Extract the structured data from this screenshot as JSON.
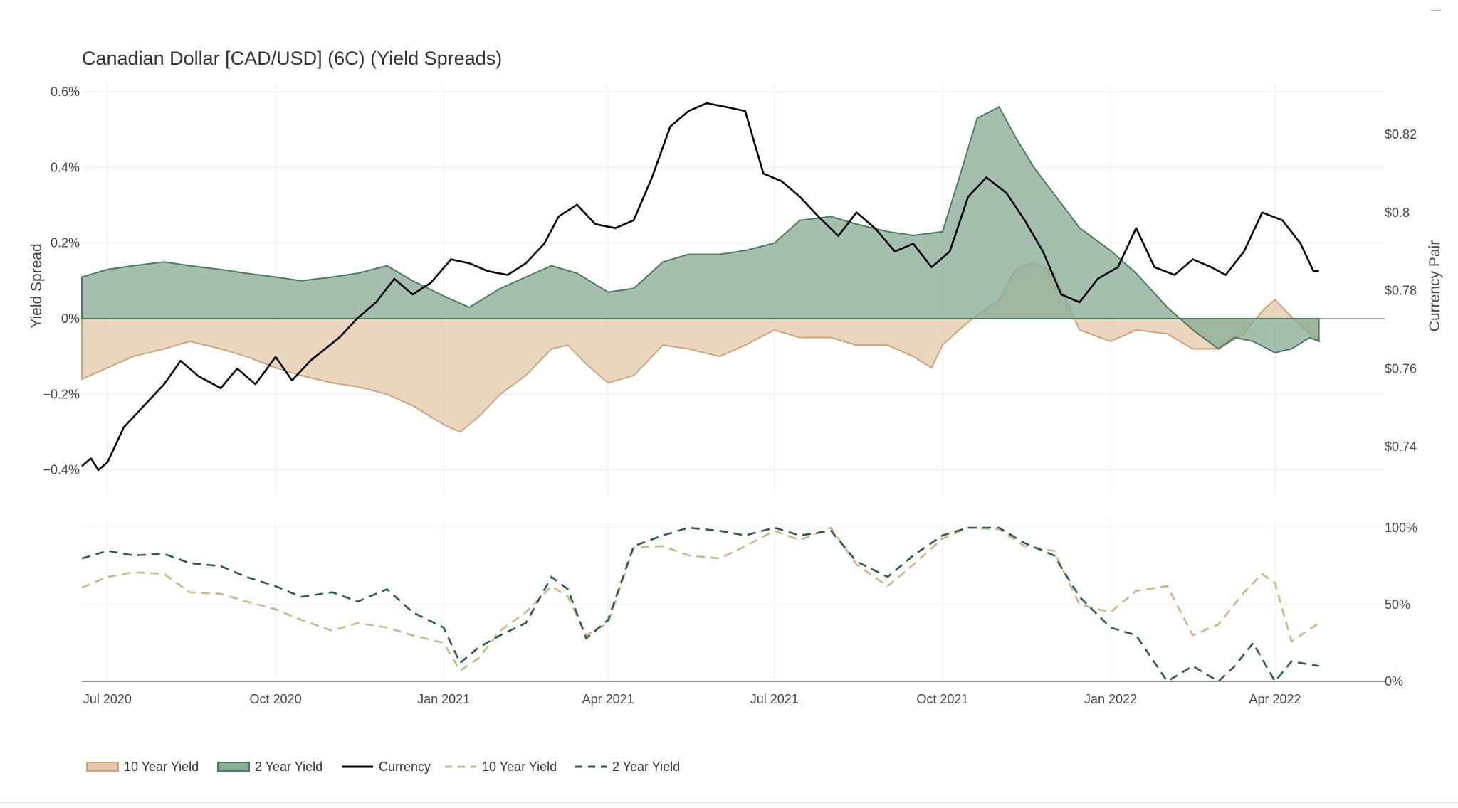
{
  "chart_data": {
    "type": "area",
    "title": "Canadian Dollar [CAD/USD] (6C) (Yield Spreads)",
    "colors": {
      "ten_year_fill": "#e3c7a8",
      "ten_year_line": "#c9a67f",
      "two_year_fill": "#87aa93",
      "two_year_line": "#4e7a60",
      "currency": "#000000",
      "ten_year_dash": "#c8b78c",
      "two_year_dash": "#2f5a4a",
      "grid": "#ebebeb",
      "zero_line": "#777777"
    },
    "x_ticks": [
      "Jul 2020",
      "Oct 2020",
      "Jan 2021",
      "Apr 2021",
      "Jul 2021",
      "Oct 2021",
      "Jan 2022",
      "Apr 2022"
    ],
    "x_tick_dates": [
      "2020-07-01",
      "2020-10-01",
      "2021-01-01",
      "2021-04-01",
      "2021-07-01",
      "2021-10-01",
      "2022-01-01",
      "2022-04-01"
    ],
    "x_range": [
      "2020-06-17",
      "2022-05-31"
    ],
    "upper": {
      "ylabel_left": "Yield Spread",
      "ylabel_right": "Currency Pair",
      "y_left_range": [
        -0.45,
        0.62
      ],
      "y_left_ticks": [
        0.6,
        0.4,
        0.2,
        0,
        -0.2,
        -0.4
      ],
      "y_left_tick_labels": [
        "0.6%",
        "0.4%",
        "0.2%",
        "0%",
        "−0.2%",
        "−0.4%"
      ],
      "y_right_range": [
        0.7292,
        0.8316
      ],
      "y_right_ticks": [
        0.82,
        0.8,
        0.78,
        0.76,
        0.74
      ],
      "y_right_tick_labels": [
        "$0.82",
        "$0.8",
        "$0.78",
        "$0.76",
        "$0.74"
      ],
      "series": [
        {
          "name": "10 Year Yield",
          "kind": "area",
          "axis": "left",
          "x": [
            "2020-06-17",
            "2020-07-01",
            "2020-07-15",
            "2020-08-01",
            "2020-08-15",
            "2020-09-01",
            "2020-09-15",
            "2020-10-01",
            "2020-10-15",
            "2020-11-01",
            "2020-11-15",
            "2020-12-01",
            "2020-12-15",
            "2021-01-01",
            "2021-01-10",
            "2021-01-20",
            "2021-02-01",
            "2021-02-15",
            "2021-03-01",
            "2021-03-10",
            "2021-03-20",
            "2021-04-01",
            "2021-04-15",
            "2021-05-01",
            "2021-05-15",
            "2021-06-01",
            "2021-06-15",
            "2021-07-01",
            "2021-07-15",
            "2021-08-01",
            "2021-08-15",
            "2021-09-01",
            "2021-09-15",
            "2021-09-25",
            "2021-10-01",
            "2021-10-10",
            "2021-10-20",
            "2021-11-01",
            "2021-11-10",
            "2021-11-20",
            "2021-12-01",
            "2021-12-15",
            "2022-01-01",
            "2022-01-15",
            "2022-02-01",
            "2022-02-15",
            "2022-03-01",
            "2022-03-15",
            "2022-03-25",
            "2022-04-01",
            "2022-04-15",
            "2022-04-25"
          ],
          "values": [
            -0.16,
            -0.13,
            -0.1,
            -0.08,
            -0.06,
            -0.08,
            -0.1,
            -0.13,
            -0.15,
            -0.17,
            -0.18,
            -0.2,
            -0.23,
            -0.28,
            -0.3,
            -0.26,
            -0.2,
            -0.15,
            -0.08,
            -0.07,
            -0.12,
            -0.17,
            -0.15,
            -0.07,
            -0.08,
            -0.1,
            -0.07,
            -0.03,
            -0.05,
            -0.05,
            -0.07,
            -0.07,
            -0.1,
            -0.13,
            -0.07,
            -0.03,
            0.01,
            0.05,
            0.13,
            0.15,
            0.12,
            -0.03,
            -0.06,
            -0.03,
            -0.04,
            -0.08,
            -0.08,
            -0.04,
            0.02,
            0.05,
            -0.02,
            -0.06
          ]
        },
        {
          "name": "2 Year Yield",
          "kind": "area",
          "axis": "left",
          "x": [
            "2020-06-17",
            "2020-07-01",
            "2020-07-15",
            "2020-08-01",
            "2020-08-15",
            "2020-09-01",
            "2020-09-15",
            "2020-10-01",
            "2020-10-15",
            "2020-11-01",
            "2020-11-15",
            "2020-12-01",
            "2020-12-15",
            "2021-01-01",
            "2021-01-15",
            "2021-02-01",
            "2021-02-15",
            "2021-03-01",
            "2021-03-15",
            "2021-04-01",
            "2021-04-15",
            "2021-05-01",
            "2021-05-15",
            "2021-06-01",
            "2021-06-15",
            "2021-07-01",
            "2021-07-15",
            "2021-08-01",
            "2021-08-15",
            "2021-09-01",
            "2021-09-15",
            "2021-10-01",
            "2021-10-10",
            "2021-10-20",
            "2021-11-01",
            "2021-11-10",
            "2021-11-20",
            "2021-12-01",
            "2021-12-15",
            "2022-01-01",
            "2022-01-15",
            "2022-02-01",
            "2022-02-15",
            "2022-03-01",
            "2022-03-10",
            "2022-03-20",
            "2022-04-01",
            "2022-04-10",
            "2022-04-20",
            "2022-04-25"
          ],
          "values": [
            0.11,
            0.13,
            0.14,
            0.15,
            0.14,
            0.13,
            0.12,
            0.11,
            0.1,
            0.11,
            0.12,
            0.14,
            0.1,
            0.06,
            0.03,
            0.08,
            0.11,
            0.14,
            0.12,
            0.07,
            0.08,
            0.15,
            0.17,
            0.17,
            0.18,
            0.2,
            0.26,
            0.27,
            0.25,
            0.23,
            0.22,
            0.23,
            0.37,
            0.53,
            0.56,
            0.48,
            0.4,
            0.33,
            0.24,
            0.18,
            0.12,
            0.03,
            -0.03,
            -0.08,
            -0.05,
            -0.06,
            -0.09,
            -0.08,
            -0.05,
            -0.06
          ]
        },
        {
          "name": "Currency",
          "kind": "line",
          "axis": "right",
          "x": [
            "2020-06-17",
            "2020-06-22",
            "2020-06-26",
            "2020-07-01",
            "2020-07-10",
            "2020-07-20",
            "2020-08-01",
            "2020-08-10",
            "2020-08-20",
            "2020-09-01",
            "2020-09-10",
            "2020-09-20",
            "2020-10-01",
            "2020-10-10",
            "2020-10-20",
            "2020-10-28",
            "2020-11-05",
            "2020-11-15",
            "2020-11-25",
            "2020-12-05",
            "2020-12-15",
            "2020-12-25",
            "2021-01-05",
            "2021-01-15",
            "2021-01-25",
            "2021-02-05",
            "2021-02-15",
            "2021-02-25",
            "2021-03-05",
            "2021-03-15",
            "2021-03-25",
            "2021-04-05",
            "2021-04-15",
            "2021-04-25",
            "2021-05-05",
            "2021-05-15",
            "2021-05-25",
            "2021-06-05",
            "2021-06-15",
            "2021-06-25",
            "2021-07-05",
            "2021-07-15",
            "2021-07-25",
            "2021-08-05",
            "2021-08-15",
            "2021-08-25",
            "2021-09-05",
            "2021-09-15",
            "2021-09-25",
            "2021-10-05",
            "2021-10-15",
            "2021-10-25",
            "2021-11-05",
            "2021-11-15",
            "2021-11-25",
            "2021-12-05",
            "2021-12-15",
            "2021-12-25",
            "2022-01-05",
            "2022-01-15",
            "2022-01-25",
            "2022-02-05",
            "2022-02-15",
            "2022-02-25",
            "2022-03-05",
            "2022-03-15",
            "2022-03-25",
            "2022-04-05",
            "2022-04-15",
            "2022-04-22",
            "2022-04-25"
          ],
          "values": [
            0.735,
            0.737,
            0.734,
            0.736,
            0.745,
            0.75,
            0.756,
            0.762,
            0.758,
            0.755,
            0.76,
            0.756,
            0.763,
            0.757,
            0.762,
            0.765,
            0.768,
            0.773,
            0.777,
            0.783,
            0.779,
            0.782,
            0.788,
            0.787,
            0.785,
            0.784,
            0.787,
            0.792,
            0.799,
            0.802,
            0.797,
            0.796,
            0.798,
            0.809,
            0.822,
            0.826,
            0.828,
            0.827,
            0.826,
            0.81,
            0.808,
            0.804,
            0.799,
            0.794,
            0.8,
            0.796,
            0.79,
            0.792,
            0.786,
            0.79,
            0.804,
            0.809,
            0.805,
            0.798,
            0.79,
            0.779,
            0.777,
            0.783,
            0.786,
            0.796,
            0.786,
            0.784,
            0.788,
            0.786,
            0.784,
            0.79,
            0.8,
            0.798,
            0.792,
            0.785,
            0.785
          ]
        }
      ]
    },
    "lower": {
      "y_range": [
        0,
        100
      ],
      "y_ticks": [
        100,
        50,
        0
      ],
      "y_tick_labels": [
        "100%",
        "50%",
        "0%"
      ],
      "series": [
        {
          "name": "10 Year Yield",
          "kind": "dashed-line",
          "x": [
            "2020-06-17",
            "2020-07-01",
            "2020-07-15",
            "2020-08-01",
            "2020-08-15",
            "2020-09-01",
            "2020-09-15",
            "2020-10-01",
            "2020-10-15",
            "2020-11-01",
            "2020-11-15",
            "2020-12-01",
            "2020-12-15",
            "2021-01-01",
            "2021-01-10",
            "2021-01-20",
            "2021-02-01",
            "2021-02-15",
            "2021-03-01",
            "2021-03-10",
            "2021-03-20",
            "2021-04-01",
            "2021-04-15",
            "2021-05-01",
            "2021-05-15",
            "2021-06-01",
            "2021-06-15",
            "2021-07-01",
            "2021-07-15",
            "2021-08-01",
            "2021-08-15",
            "2021-09-01",
            "2021-09-15",
            "2021-10-01",
            "2021-10-15",
            "2021-11-01",
            "2021-11-15",
            "2021-12-01",
            "2021-12-15",
            "2022-01-01",
            "2022-01-15",
            "2022-02-01",
            "2022-02-15",
            "2022-03-01",
            "2022-03-15",
            "2022-03-25",
            "2022-04-01",
            "2022-04-10",
            "2022-04-25"
          ],
          "values": [
            61,
            68,
            71,
            70,
            58,
            57,
            52,
            47,
            40,
            33,
            38,
            35,
            30,
            25,
            7,
            15,
            33,
            45,
            62,
            55,
            30,
            38,
            87,
            88,
            82,
            80,
            88,
            98,
            92,
            100,
            76,
            62,
            76,
            93,
            100,
            99,
            88,
            85,
            50,
            45,
            59,
            62,
            30,
            37,
            58,
            70,
            64,
            26,
            38
          ]
        },
        {
          "name": "2 Year Yield",
          "kind": "dashed-line",
          "x": [
            "2020-06-17",
            "2020-07-01",
            "2020-07-15",
            "2020-08-01",
            "2020-08-15",
            "2020-09-01",
            "2020-09-15",
            "2020-10-01",
            "2020-10-15",
            "2020-11-01",
            "2020-11-15",
            "2020-12-01",
            "2020-12-15",
            "2021-01-01",
            "2021-01-10",
            "2021-01-20",
            "2021-02-01",
            "2021-02-15",
            "2021-03-01",
            "2021-03-10",
            "2021-03-20",
            "2021-04-01",
            "2021-04-15",
            "2021-05-01",
            "2021-05-15",
            "2021-06-01",
            "2021-06-15",
            "2021-07-01",
            "2021-07-15",
            "2021-08-01",
            "2021-08-15",
            "2021-09-01",
            "2021-09-15",
            "2021-10-01",
            "2021-10-15",
            "2021-11-01",
            "2021-11-15",
            "2021-12-01",
            "2021-12-15",
            "2022-01-01",
            "2022-01-15",
            "2022-02-01",
            "2022-02-15",
            "2022-03-01",
            "2022-03-10",
            "2022-03-20",
            "2022-04-01",
            "2022-04-10",
            "2022-04-25"
          ],
          "values": [
            80,
            85,
            82,
            83,
            77,
            75,
            68,
            62,
            55,
            58,
            52,
            60,
            45,
            35,
            12,
            22,
            30,
            38,
            68,
            60,
            28,
            40,
            88,
            95,
            100,
            98,
            95,
            100,
            95,
            98,
            78,
            68,
            82,
            95,
            100,
            100,
            90,
            82,
            55,
            35,
            30,
            0,
            10,
            0,
            10,
            25,
            0,
            13,
            10
          ]
        }
      ]
    },
    "legend": [
      {
        "label": "10 Year Yield",
        "style": "fill",
        "color": "#e3c7a8"
      },
      {
        "label": "2 Year Yield",
        "style": "fill",
        "color": "#87aa93"
      },
      {
        "label": "Currency",
        "style": "line",
        "color": "#000000"
      },
      {
        "label": "10 Year Yield",
        "style": "dash",
        "color": "#c8b78c"
      },
      {
        "label": "2 Year Yield",
        "style": "dash",
        "color": "#2f5a4a"
      }
    ]
  }
}
